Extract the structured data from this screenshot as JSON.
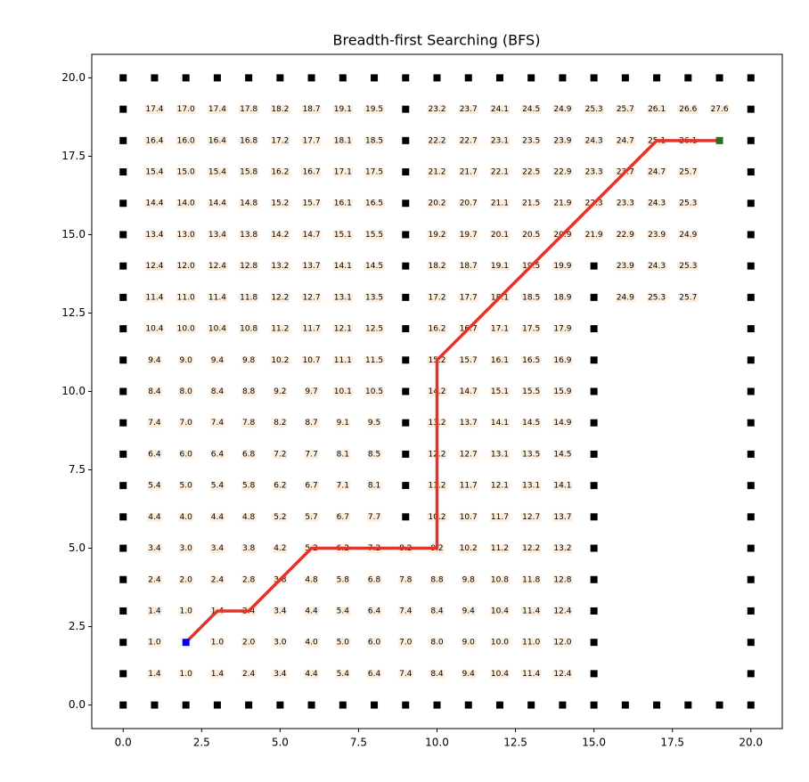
{
  "chart_data": {
    "type": "scatter",
    "title": "Breadth-first Searching (BFS)",
    "xlim": [
      -1,
      21
    ],
    "ylim": [
      -0.75,
      20.75
    ],
    "xticks": [
      {
        "value": 0,
        "label": "0.0"
      },
      {
        "value": 2.5,
        "label": "2.5"
      },
      {
        "value": 5,
        "label": "5.0"
      },
      {
        "value": 7.5,
        "label": "7.5"
      },
      {
        "value": 10,
        "label": "10.0"
      },
      {
        "value": 12.5,
        "label": "12.5"
      },
      {
        "value": 15,
        "label": "15.0"
      },
      {
        "value": 17.5,
        "label": "17.5"
      },
      {
        "value": 20,
        "label": "20.0"
      }
    ],
    "yticks": [
      {
        "value": 0,
        "label": "0.0"
      },
      {
        "value": 2.5,
        "label": "2.5"
      },
      {
        "value": 5,
        "label": "5.0"
      },
      {
        "value": 7.5,
        "label": "7.5"
      },
      {
        "value": 10,
        "label": "10.0"
      },
      {
        "value": 12.5,
        "label": "12.5"
      },
      {
        "value": 15,
        "label": "15.0"
      },
      {
        "value": 17.5,
        "label": "17.5"
      },
      {
        "value": 20,
        "label": "20.0"
      }
    ],
    "grid": false,
    "series": [
      {
        "type": "scatter",
        "marker": "square",
        "color": "#000000",
        "x": [
          0,
          1,
          2,
          3,
          4,
          5,
          6,
          7,
          8,
          9,
          10,
          11,
          12,
          13,
          14,
          15,
          16,
          17,
          18,
          19,
          20,
          0,
          1,
          2,
          3,
          4,
          5,
          6,
          7,
          8,
          9,
          10,
          11,
          12,
          13,
          14,
          15,
          16,
          17,
          18,
          19,
          20,
          0,
          0,
          0,
          0,
          0,
          0,
          0,
          0,
          0,
          0,
          0,
          0,
          0,
          0,
          0,
          0,
          0,
          0,
          0,
          20,
          20,
          20,
          20,
          20,
          20,
          20,
          20,
          20,
          20,
          20,
          20,
          20,
          20,
          20,
          20,
          20,
          20,
          20,
          9,
          9,
          9,
          9,
          9,
          9,
          9,
          9,
          9,
          9,
          9,
          9,
          9,
          9,
          15,
          15,
          15,
          15,
          15,
          15,
          15,
          15,
          15,
          15,
          15,
          15,
          15,
          15
        ],
        "y": [
          0,
          0,
          0,
          0,
          0,
          0,
          0,
          0,
          0,
          0,
          0,
          0,
          0,
          0,
          0,
          0,
          0,
          0,
          0,
          0,
          0,
          20,
          20,
          20,
          20,
          20,
          20,
          20,
          20,
          20,
          20,
          20,
          20,
          20,
          20,
          20,
          20,
          20,
          20,
          20,
          20,
          20,
          1,
          2,
          3,
          4,
          5,
          6,
          7,
          8,
          9,
          10,
          11,
          12,
          13,
          14,
          15,
          16,
          17,
          18,
          19,
          1,
          2,
          3,
          4,
          5,
          6,
          7,
          8,
          9,
          10,
          11,
          12,
          13,
          14,
          15,
          16,
          17,
          18,
          19,
          6,
          7,
          8,
          9,
          10,
          11,
          12,
          13,
          14,
          15,
          16,
          17,
          18,
          19,
          1,
          2,
          3,
          4,
          5,
          6,
          7,
          8,
          9,
          10,
          11,
          12,
          13,
          14
        ]
      },
      {
        "type": "line",
        "color": "#e0352b",
        "x": [
          2,
          3,
          4,
          5,
          6,
          7,
          8,
          9,
          10,
          10,
          10,
          10,
          10,
          10,
          10,
          11,
          12,
          13,
          14,
          15,
          16,
          17,
          18,
          19
        ],
        "y": [
          2,
          3,
          3,
          4,
          5,
          5,
          5,
          5,
          5,
          6,
          7,
          8,
          9,
          10,
          11,
          12,
          13,
          14,
          15,
          16,
          17,
          18,
          18,
          18
        ]
      },
      {
        "type": "scatter",
        "marker": "square",
        "color": "#0000ff",
        "x": [
          2
        ],
        "y": [
          2
        ]
      },
      {
        "type": "scatter",
        "marker": "square",
        "color": "#2e6b1f",
        "x": [
          19
        ],
        "y": [
          18
        ]
      }
    ],
    "labels": {
      "background": "#fde3c8",
      "x": [
        1,
        2,
        3,
        4,
        5,
        6,
        7,
        8,
        9,
        10,
        11,
        12,
        13,
        14,
        15,
        16,
        17,
        18,
        19
      ],
      "y": [
        19,
        18,
        17,
        16,
        15,
        14,
        13,
        12,
        11,
        10,
        9,
        8,
        7,
        6,
        5,
        4,
        3,
        2,
        1
      ],
      "rows": [
        [
          "17.4",
          "17.0",
          "17.4",
          "17.8",
          "18.2",
          "18.7",
          "19.1",
          "19.5",
          null,
          "23.2",
          "23.7",
          "24.1",
          "24.5",
          "24.9",
          "25.3",
          "25.7",
          "26.1",
          "26.6",
          "27.6"
        ],
        [
          "16.4",
          "16.0",
          "16.4",
          "16.8",
          "17.2",
          "17.7",
          "18.1",
          "18.5",
          null,
          "22.2",
          "22.7",
          "23.1",
          "23.5",
          "23.9",
          "24.3",
          "24.7",
          "25.1",
          "26.1",
          null
        ],
        [
          "15.4",
          "15.0",
          "15.4",
          "15.8",
          "16.2",
          "16.7",
          "17.1",
          "17.5",
          null,
          "21.2",
          "21.7",
          "22.1",
          "22.5",
          "22.9",
          "23.3",
          "23.7",
          "24.7",
          "25.7",
          null
        ],
        [
          "14.4",
          "14.0",
          "14.4",
          "14.8",
          "15.2",
          "15.7",
          "16.1",
          "16.5",
          null,
          "20.2",
          "20.7",
          "21.1",
          "21.5",
          "21.9",
          "22.3",
          "23.3",
          "24.3",
          "25.3",
          null
        ],
        [
          "13.4",
          "13.0",
          "13.4",
          "13.8",
          "14.2",
          "14.7",
          "15.1",
          "15.5",
          null,
          "19.2",
          "19.7",
          "20.1",
          "20.5",
          "20.9",
          "21.9",
          "22.9",
          "23.9",
          "24.9",
          null
        ],
        [
          "12.4",
          "12.0",
          "12.4",
          "12.8",
          "13.2",
          "13.7",
          "14.1",
          "14.5",
          null,
          "18.2",
          "18.7",
          "19.1",
          "19.5",
          "19.9",
          null,
          "23.9",
          "24.3",
          "25.3",
          null
        ],
        [
          "11.4",
          "11.0",
          "11.4",
          "11.8",
          "12.2",
          "12.7",
          "13.1",
          "13.5",
          null,
          "17.2",
          "17.7",
          "18.1",
          "18.5",
          "18.9",
          null,
          "24.9",
          "25.3",
          "25.7",
          null
        ],
        [
          "10.4",
          "10.0",
          "10.4",
          "10.8",
          "11.2",
          "11.7",
          "12.1",
          "12.5",
          null,
          "16.2",
          "16.7",
          "17.1",
          "17.5",
          "17.9",
          null,
          null,
          null,
          null,
          null
        ],
        [
          "9.4",
          "9.0",
          "9.4",
          "9.8",
          "10.2",
          "10.7",
          "11.1",
          "11.5",
          null,
          "15.2",
          "15.7",
          "16.1",
          "16.5",
          "16.9",
          null,
          null,
          null,
          null,
          null
        ],
        [
          "8.4",
          "8.0",
          "8.4",
          "8.8",
          "9.2",
          "9.7",
          "10.1",
          "10.5",
          null,
          "14.2",
          "14.7",
          "15.1",
          "15.5",
          "15.9",
          null,
          null,
          null,
          null,
          null
        ],
        [
          "7.4",
          "7.0",
          "7.4",
          "7.8",
          "8.2",
          "8.7",
          "9.1",
          "9.5",
          null,
          "13.2",
          "13.7",
          "14.1",
          "14.5",
          "14.9",
          null,
          null,
          null,
          null,
          null
        ],
        [
          "6.4",
          "6.0",
          "6.4",
          "6.8",
          "7.2",
          "7.7",
          "8.1",
          "8.5",
          null,
          "12.2",
          "12.7",
          "13.1",
          "13.5",
          "14.5",
          null,
          null,
          null,
          null,
          null
        ],
        [
          "5.4",
          "5.0",
          "5.4",
          "5.8",
          "6.2",
          "6.7",
          "7.1",
          "8.1",
          null,
          "11.2",
          "11.7",
          "12.1",
          "13.1",
          "14.1",
          null,
          null,
          null,
          null,
          null
        ],
        [
          "4.4",
          "4.0",
          "4.4",
          "4.8",
          "5.2",
          "5.7",
          "6.7",
          "7.7",
          null,
          "10.2",
          "10.7",
          "11.7",
          "12.7",
          "13.7",
          null,
          null,
          null,
          null,
          null
        ],
        [
          "3.4",
          "3.0",
          "3.4",
          "3.8",
          "4.2",
          "5.2",
          "6.2",
          "7.2",
          "8.2",
          "9.2",
          "10.2",
          "11.2",
          "12.2",
          "13.2",
          null,
          null,
          null,
          null,
          null
        ],
        [
          "2.4",
          "2.0",
          "2.4",
          "2.8",
          "3.8",
          "4.8",
          "5.8",
          "6.8",
          "7.8",
          "8.8",
          "9.8",
          "10.8",
          "11.8",
          "12.8",
          null,
          null,
          null,
          null,
          null
        ],
        [
          "1.4",
          "1.0",
          "1.4",
          "2.4",
          "3.4",
          "4.4",
          "5.4",
          "6.4",
          "7.4",
          "8.4",
          "9.4",
          "10.4",
          "11.4",
          "12.4",
          null,
          null,
          null,
          null,
          null
        ],
        [
          "1.0",
          null,
          "1.0",
          "2.0",
          "3.0",
          "4.0",
          "5.0",
          "6.0",
          "7.0",
          "8.0",
          "9.0",
          "10.0",
          "11.0",
          "12.0",
          null,
          null,
          null,
          null,
          null
        ],
        [
          "1.4",
          "1.0",
          "1.4",
          "2.4",
          "3.4",
          "4.4",
          "5.4",
          "6.4",
          "7.4",
          "8.4",
          "9.4",
          "10.4",
          "11.4",
          "12.4",
          null,
          null,
          null,
          null,
          null
        ]
      ]
    }
  }
}
